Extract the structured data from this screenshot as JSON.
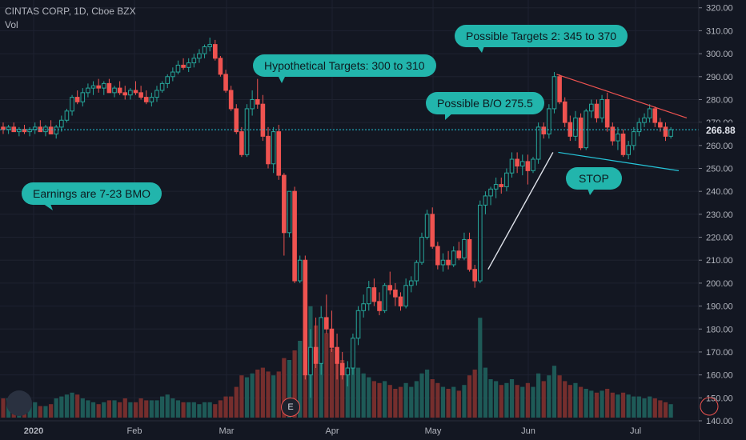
{
  "header": {
    "title": "CINTAS CORP, 1D, Cboe BZX",
    "volume_label": "Vol"
  },
  "colors": {
    "up": "#26a69a",
    "down": "#ef5350",
    "background": "#131722",
    "grid": "#1e2230",
    "bubble": "#22b5ac",
    "current_price_line": "#26c6da"
  },
  "price_badge": "266.88",
  "earnings_marker": "E",
  "annotations": [
    {
      "id": "earnings",
      "text": "Earnings are 7-23 BMO"
    },
    {
      "id": "hypothetical",
      "text": "Hypothetical Targets: 300 to 310"
    },
    {
      "id": "targets2",
      "text": "Possible Targets 2: 345 to 370"
    },
    {
      "id": "breakout",
      "text": "Possible B/O 275.5"
    },
    {
      "id": "stop",
      "text": "STOP"
    }
  ],
  "chart_data": {
    "type": "candlestick",
    "title": "CINTAS CORP, 1D, Cboe BZX",
    "ylim": [
      140,
      322
    ],
    "y_ticks": [
      "140.00",
      "150.00",
      "160.00",
      "170.00",
      "180.00",
      "190.00",
      "200.00",
      "210.00",
      "220.00",
      "230.00",
      "240.00",
      "250.00",
      "260.00",
      "270.00",
      "280.00",
      "290.00",
      "300.00",
      "310.00",
      "320.00"
    ],
    "x_ticks": [
      "2020",
      "Feb",
      "Mar",
      "Apr",
      "May",
      "Jun",
      "Jul"
    ],
    "current_price": 266.88,
    "ohlc": [
      [
        0,
        268,
        270,
        265,
        267,
        0.5
      ],
      [
        1,
        267,
        269,
        265,
        268,
        0.5
      ],
      [
        2,
        268,
        270,
        266,
        266,
        0.45
      ],
      [
        3,
        266,
        268,
        264,
        267,
        0.4
      ],
      [
        4,
        267,
        269,
        265,
        266,
        0.35
      ],
      [
        5,
        266,
        268,
        264,
        267,
        0.35
      ],
      [
        6,
        267,
        270,
        265,
        268,
        0.4
      ],
      [
        7,
        268,
        271,
        266,
        266,
        0.3
      ],
      [
        8,
        266,
        269,
        264,
        268,
        0.3
      ],
      [
        9,
        268,
        271,
        265,
        265,
        0.35
      ],
      [
        10,
        265,
        269,
        263,
        268,
        0.5
      ],
      [
        11,
        268,
        273,
        266,
        271,
        0.55
      ],
      [
        12,
        271,
        276,
        270,
        275,
        0.6
      ],
      [
        13,
        275,
        282,
        273,
        281,
        0.65
      ],
      [
        14,
        281,
        284,
        278,
        279,
        0.6
      ],
      [
        15,
        279,
        285,
        277,
        283,
        0.5
      ],
      [
        16,
        283,
        287,
        281,
        285,
        0.45
      ],
      [
        17,
        285,
        288,
        282,
        286,
        0.4
      ],
      [
        18,
        286,
        289,
        283,
        285,
        0.35
      ],
      [
        19,
        285,
        288,
        282,
        287,
        0.4
      ],
      [
        20,
        287,
        289,
        283,
        283,
        0.45
      ],
      [
        21,
        283,
        286,
        281,
        285,
        0.45
      ],
      [
        22,
        285,
        288,
        282,
        283,
        0.4
      ],
      [
        23,
        283,
        286,
        280,
        282,
        0.5
      ],
      [
        24,
        282,
        285,
        280,
        284,
        0.4
      ],
      [
        25,
        284,
        288,
        282,
        283,
        0.4
      ],
      [
        26,
        283,
        286,
        280,
        281,
        0.5
      ],
      [
        27,
        281,
        284,
        278,
        279,
        0.45
      ],
      [
        28,
        279,
        283,
        277,
        281,
        0.45
      ],
      [
        29,
        281,
        286,
        279,
        284,
        0.45
      ],
      [
        30,
        284,
        288,
        283,
        287,
        0.55
      ],
      [
        31,
        287,
        291,
        285,
        290,
        0.6
      ],
      [
        32,
        290,
        294,
        288,
        292,
        0.5
      ],
      [
        33,
        292,
        297,
        291,
        295,
        0.45
      ],
      [
        34,
        295,
        298,
        293,
        294,
        0.4
      ],
      [
        35,
        294,
        298,
        292,
        296,
        0.4
      ],
      [
        36,
        296,
        300,
        294,
        298,
        0.4
      ],
      [
        37,
        298,
        302,
        296,
        300,
        0.35
      ],
      [
        38,
        300,
        304,
        298,
        303,
        0.4
      ],
      [
        39,
        303,
        307,
        301,
        304,
        0.4
      ],
      [
        40,
        304,
        306,
        297,
        298,
        0.35
      ],
      [
        41,
        298,
        299,
        290,
        291,
        0.45
      ],
      [
        42,
        291,
        293,
        283,
        284,
        0.55
      ],
      [
        43,
        284,
        286,
        275,
        276,
        0.55
      ],
      [
        44,
        276,
        278,
        265,
        266,
        0.8
      ],
      [
        45,
        266,
        268,
        255,
        256,
        1.1
      ],
      [
        46,
        256,
        278,
        255,
        276,
        1.05
      ],
      [
        47,
        276,
        284,
        273,
        280,
        1.15
      ],
      [
        48,
        280,
        289,
        276,
        278,
        1.25
      ],
      [
        49,
        278,
        282,
        262,
        264,
        1.3
      ],
      [
        50,
        264,
        268,
        250,
        252,
        1.2
      ],
      [
        51,
        252,
        268,
        248,
        266,
        1.1
      ],
      [
        52,
        266,
        269,
        245,
        247,
        1.2
      ],
      [
        53,
        247,
        248,
        212,
        222,
        1.55
      ],
      [
        54,
        222,
        240,
        220,
        240,
        1.5
      ],
      [
        55,
        240,
        242,
        200,
        201,
        1.75
      ],
      [
        56,
        201,
        212,
        200,
        210,
        2.0
      ],
      [
        57,
        210,
        212,
        158,
        160,
        2.6
      ],
      [
        58,
        160,
        180,
        150,
        172,
        2.9
      ],
      [
        59,
        172,
        185,
        163,
        165,
        2.4
      ],
      [
        60,
        165,
        190,
        160,
        185,
        2.55
      ],
      [
        61,
        185,
        195,
        178,
        180,
        2.2
      ],
      [
        62,
        180,
        188,
        170,
        172,
        1.8
      ],
      [
        63,
        172,
        178,
        158,
        165,
        1.6
      ],
      [
        64,
        165,
        170,
        158,
        160,
        1.5
      ],
      [
        65,
        160,
        166,
        155,
        163,
        1.3
      ],
      [
        66,
        163,
        178,
        160,
        176,
        1.45
      ],
      [
        67,
        176,
        190,
        173,
        188,
        1.3
      ],
      [
        68,
        188,
        195,
        185,
        191,
        1.15
      ],
      [
        69,
        191,
        201,
        188,
        198,
        1.05
      ],
      [
        70,
        198,
        202,
        190,
        192,
        0.95
      ],
      [
        71,
        192,
        196,
        186,
        188,
        0.9
      ],
      [
        72,
        188,
        200,
        187,
        199,
        0.95
      ],
      [
        73,
        199,
        205,
        195,
        197,
        0.85
      ],
      [
        74,
        197,
        200,
        190,
        194,
        0.75
      ],
      [
        75,
        194,
        196,
        188,
        190,
        0.8
      ],
      [
        76,
        190,
        202,
        189,
        199,
        0.9
      ],
      [
        77,
        199,
        203,
        196,
        201,
        0.8
      ],
      [
        78,
        201,
        210,
        199,
        209,
        0.95
      ],
      [
        79,
        209,
        222,
        208,
        220,
        1.15
      ],
      [
        80,
        220,
        232,
        219,
        230,
        1.25
      ],
      [
        81,
        230,
        233,
        215,
        216,
        1.0
      ],
      [
        82,
        216,
        218,
        206,
        208,
        0.9
      ],
      [
        83,
        208,
        213,
        205,
        210,
        0.8
      ],
      [
        84,
        210,
        214,
        206,
        208,
        0.75
      ],
      [
        85,
        208,
        216,
        207,
        214,
        0.8
      ],
      [
        86,
        214,
        218,
        210,
        211,
        0.7
      ],
      [
        87,
        211,
        222,
        210,
        219,
        0.85
      ],
      [
        88,
        219,
        222,
        205,
        206,
        1.1
      ],
      [
        89,
        206,
        208,
        198,
        201,
        1.25
      ],
      [
        90,
        201,
        236,
        200,
        234,
        2.6
      ],
      [
        91,
        234,
        240,
        230,
        238,
        1.3
      ],
      [
        92,
        238,
        242,
        234,
        241,
        1.0
      ],
      [
        93,
        241,
        246,
        237,
        243,
        0.95
      ],
      [
        94,
        243,
        246,
        239,
        242,
        0.85
      ],
      [
        95,
        242,
        250,
        240,
        248,
        0.9
      ],
      [
        96,
        248,
        257,
        246,
        254,
        1.0
      ],
      [
        97,
        254,
        257,
        248,
        251,
        0.85
      ],
      [
        98,
        251,
        256,
        247,
        253,
        0.8
      ],
      [
        99,
        253,
        256,
        243,
        249,
        0.9
      ],
      [
        100,
        249,
        255,
        248,
        254,
        0.8
      ],
      [
        101,
        254,
        270,
        252,
        268,
        1.15
      ],
      [
        102,
        268,
        270,
        263,
        265,
        0.95
      ],
      [
        103,
        265,
        278,
        263,
        276,
        1.1
      ],
      [
        104,
        276,
        292,
        274,
        290,
        1.35
      ],
      [
        105,
        290,
        291,
        278,
        279,
        1.1
      ],
      [
        106,
        279,
        281,
        268,
        270,
        0.95
      ],
      [
        107,
        270,
        273,
        262,
        264,
        0.85
      ],
      [
        108,
        264,
        275,
        262,
        272,
        0.9
      ],
      [
        109,
        272,
        274,
        258,
        259,
        0.8
      ],
      [
        110,
        259,
        276,
        258,
        275,
        0.75
      ],
      [
        111,
        275,
        280,
        272,
        278,
        0.7
      ],
      [
        112,
        278,
        280,
        270,
        272,
        0.65
      ],
      [
        113,
        272,
        282,
        270,
        280,
        0.7
      ],
      [
        114,
        280,
        283,
        266,
        268,
        0.75
      ],
      [
        115,
        268,
        270,
        260,
        262,
        0.65
      ],
      [
        116,
        262,
        268,
        258,
        265,
        0.6
      ],
      [
        117,
        265,
        267,
        255,
        256,
        0.65
      ],
      [
        118,
        256,
        262,
        254,
        260,
        0.6
      ],
      [
        119,
        260,
        268,
        258,
        266,
        0.55
      ],
      [
        120,
        266,
        272,
        264,
        270,
        0.55
      ],
      [
        121,
        270,
        274,
        268,
        272,
        0.5
      ],
      [
        122,
        272,
        278,
        270,
        276,
        0.55
      ],
      [
        123,
        276,
        277,
        268,
        270,
        0.5
      ],
      [
        124,
        270,
        272,
        266,
        268,
        0.45
      ],
      [
        125,
        268,
        270,
        262,
        264,
        0.4
      ],
      [
        126,
        264,
        268,
        263,
        266.88,
        0.35
      ]
    ]
  }
}
